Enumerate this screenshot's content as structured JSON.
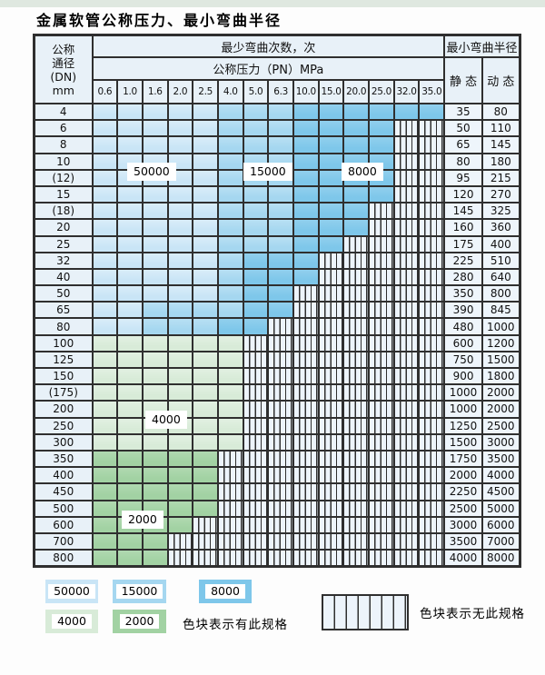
{
  "title": "金属软管公称压力、最小弯曲半径",
  "colors": {
    "b1": "#c9e5f6",
    "b2": "#a5d7f0",
    "b3": "#7ec7ea",
    "g1": "#d8ebd8",
    "g2": "#a2d2a3",
    "hatch_bg": "#edf4fb",
    "header_bg": "#e8f1f8",
    "value_bg": "#eef5fb",
    "border": "#2f2f2f"
  },
  "table": {
    "header": {
      "dn_lines": [
        "公称",
        "通径",
        "(DN)",
        "mm"
      ],
      "min_bend_cycles": "最少弯曲次数，次",
      "nominal_pressure": "公称压力（PN）MPa",
      "pressures": [
        "0.6",
        "1.0",
        "1.6",
        "2.0",
        "2.5",
        "4.0",
        "5.0",
        "6.3",
        "10.0",
        "15.0",
        "20.0",
        "25.0",
        "32.0",
        "35.0"
      ],
      "min_bend_radius": "最小弯曲半径",
      "static": "静 态",
      "dynamic": "动 态"
    },
    "zone_meaning": {
      "b1": "50000",
      "b2": "15000",
      "b3": "8000",
      "g1": "4000",
      "g2": "2000",
      "x": "无此规格"
    },
    "rows": [
      {
        "dn": "4",
        "cells": [
          "b1",
          "b1",
          "b1",
          "b1",
          "b1",
          "b2",
          "b2",
          "b2",
          "b3",
          "b3",
          "b3",
          "b3",
          "b3",
          "b3"
        ],
        "static": "35",
        "dynamic": "80"
      },
      {
        "dn": "6",
        "cells": [
          "b1",
          "b1",
          "b1",
          "b1",
          "b1",
          "b2",
          "b2",
          "b2",
          "b3",
          "b3",
          "b3",
          "b3",
          "x",
          "x"
        ],
        "static": "50",
        "dynamic": "110"
      },
      {
        "dn": "8",
        "cells": [
          "b1",
          "b1",
          "b1",
          "b1",
          "b1",
          "b2",
          "b2",
          "b2",
          "b3",
          "b3",
          "b3",
          "b3",
          "x",
          "x"
        ],
        "static": "65",
        "dynamic": "145"
      },
      {
        "dn": "10",
        "cells": [
          "b1",
          "b1",
          "b1",
          "b1",
          "b1",
          "b2",
          "b2",
          "b2",
          "b3",
          "b3",
          "b3",
          "b3",
          "x",
          "x"
        ],
        "static": "80",
        "dynamic": "180"
      },
      {
        "dn": "(12)",
        "cells": [
          "b1",
          "b1",
          "b1",
          "b1",
          "b1",
          "b2",
          "b2",
          "b2",
          "b3",
          "b3",
          "b3",
          "b3",
          "x",
          "x"
        ],
        "static": "95",
        "dynamic": "215"
      },
      {
        "dn": "15",
        "cells": [
          "b1",
          "b1",
          "b1",
          "b1",
          "b1",
          "b2",
          "b2",
          "b2",
          "b3",
          "b3",
          "b3",
          "b3",
          "x",
          "x"
        ],
        "static": "120",
        "dynamic": "270"
      },
      {
        "dn": "(18)",
        "cells": [
          "b1",
          "b1",
          "b1",
          "b1",
          "b1",
          "b2",
          "b2",
          "b2",
          "b3",
          "b3",
          "b3",
          "x",
          "x",
          "x"
        ],
        "static": "145",
        "dynamic": "325"
      },
      {
        "dn": "20",
        "cells": [
          "b1",
          "b1",
          "b1",
          "b1",
          "b1",
          "b2",
          "b2",
          "b2",
          "b3",
          "b3",
          "b3",
          "x",
          "x",
          "x"
        ],
        "static": "160",
        "dynamic": "360"
      },
      {
        "dn": "25",
        "cells": [
          "b1",
          "b1",
          "b1",
          "b1",
          "b1",
          "b2",
          "b2",
          "b2",
          "b3",
          "b3",
          "x",
          "x",
          "x",
          "x"
        ],
        "static": "175",
        "dynamic": "400"
      },
      {
        "dn": "32",
        "cells": [
          "b1",
          "b1",
          "b1",
          "b1",
          "b1",
          "b2",
          "b3",
          "b3",
          "b3",
          "x",
          "x",
          "x",
          "x",
          "x"
        ],
        "static": "225",
        "dynamic": "510"
      },
      {
        "dn": "40",
        "cells": [
          "b1",
          "b1",
          "b1",
          "b1",
          "b1",
          "b2",
          "b3",
          "b3",
          "b3",
          "x",
          "x",
          "x",
          "x",
          "x"
        ],
        "static": "280",
        "dynamic": "640"
      },
      {
        "dn": "50",
        "cells": [
          "b1",
          "b1",
          "b1",
          "b1",
          "b1",
          "b2",
          "b3",
          "b3",
          "x",
          "x",
          "x",
          "x",
          "x",
          "x"
        ],
        "static": "350",
        "dynamic": "800"
      },
      {
        "dn": "65",
        "cells": [
          "b1",
          "b1",
          "b2",
          "b2",
          "b2",
          "b2",
          "b3",
          "b3",
          "x",
          "x",
          "x",
          "x",
          "x",
          "x"
        ],
        "static": "390",
        "dynamic": "845"
      },
      {
        "dn": "80",
        "cells": [
          "b1",
          "b1",
          "b2",
          "b2",
          "b2",
          "b3",
          "b3",
          "x",
          "x",
          "x",
          "x",
          "x",
          "x",
          "x"
        ],
        "static": "480",
        "dynamic": "1000"
      },
      {
        "dn": "100",
        "cells": [
          "g1",
          "g1",
          "g1",
          "g1",
          "g1",
          "g1",
          "x",
          "x",
          "x",
          "x",
          "x",
          "x",
          "x",
          "x"
        ],
        "static": "600",
        "dynamic": "1200"
      },
      {
        "dn": "125",
        "cells": [
          "g1",
          "g1",
          "g1",
          "g1",
          "g1",
          "g1",
          "x",
          "x",
          "x",
          "x",
          "x",
          "x",
          "x",
          "x"
        ],
        "static": "750",
        "dynamic": "1500"
      },
      {
        "dn": "150",
        "cells": [
          "g1",
          "g1",
          "g1",
          "g1",
          "g1",
          "g1",
          "x",
          "x",
          "x",
          "x",
          "x",
          "x",
          "x",
          "x"
        ],
        "static": "900",
        "dynamic": "1800"
      },
      {
        "dn": "(175)",
        "cells": [
          "g1",
          "g1",
          "g1",
          "g1",
          "g1",
          "g1",
          "x",
          "x",
          "x",
          "x",
          "x",
          "x",
          "x",
          "x"
        ],
        "static": "1000",
        "dynamic": "2000"
      },
      {
        "dn": "200",
        "cells": [
          "g1",
          "g1",
          "g1",
          "g1",
          "g1",
          "g1",
          "x",
          "x",
          "x",
          "x",
          "x",
          "x",
          "x",
          "x"
        ],
        "static": "1000",
        "dynamic": "2000"
      },
      {
        "dn": "250",
        "cells": [
          "g1",
          "g1",
          "g1",
          "g1",
          "g1",
          "g1",
          "x",
          "x",
          "x",
          "x",
          "x",
          "x",
          "x",
          "x"
        ],
        "static": "1250",
        "dynamic": "2500"
      },
      {
        "dn": "300",
        "cells": [
          "g1",
          "g1",
          "g1",
          "g1",
          "g1",
          "g1",
          "x",
          "x",
          "x",
          "x",
          "x",
          "x",
          "x",
          "x"
        ],
        "static": "1500",
        "dynamic": "3000"
      },
      {
        "dn": "350",
        "cells": [
          "g2",
          "g2",
          "g2",
          "g2",
          "g2",
          "x",
          "x",
          "x",
          "x",
          "x",
          "x",
          "x",
          "x",
          "x"
        ],
        "static": "1750",
        "dynamic": "3500"
      },
      {
        "dn": "400",
        "cells": [
          "g2",
          "g2",
          "g2",
          "g2",
          "g2",
          "x",
          "x",
          "x",
          "x",
          "x",
          "x",
          "x",
          "x",
          "x"
        ],
        "static": "2000",
        "dynamic": "4000"
      },
      {
        "dn": "450",
        "cells": [
          "g2",
          "g2",
          "g2",
          "g2",
          "g2",
          "x",
          "x",
          "x",
          "x",
          "x",
          "x",
          "x",
          "x",
          "x"
        ],
        "static": "2250",
        "dynamic": "4500"
      },
      {
        "dn": "500",
        "cells": [
          "g2",
          "g2",
          "g2",
          "g2",
          "g2",
          "x",
          "x",
          "x",
          "x",
          "x",
          "x",
          "x",
          "x",
          "x"
        ],
        "static": "2500",
        "dynamic": "5000"
      },
      {
        "dn": "600",
        "cells": [
          "g2",
          "g2",
          "g2",
          "g2",
          "x",
          "x",
          "x",
          "x",
          "x",
          "x",
          "x",
          "x",
          "x",
          "x"
        ],
        "static": "3000",
        "dynamic": "6000"
      },
      {
        "dn": "700",
        "cells": [
          "g2",
          "g2",
          "g2",
          "x",
          "x",
          "x",
          "x",
          "x",
          "x",
          "x",
          "x",
          "x",
          "x",
          "x"
        ],
        "static": "3500",
        "dynamic": "7000"
      },
      {
        "dn": "800",
        "cells": [
          "g2",
          "g2",
          "g2",
          "x",
          "x",
          "x",
          "x",
          "x",
          "x",
          "x",
          "x",
          "x",
          "x",
          "x"
        ],
        "static": "4000",
        "dynamic": "8000"
      }
    ]
  },
  "overlays": {
    "cycles_50000": "50000",
    "cycles_15000": "15000",
    "cycles_8000": "8000",
    "cycles_4000": "4000",
    "cycles_2000": "2000"
  },
  "legend": {
    "swatches": [
      {
        "label": "50000"
      },
      {
        "label": "15000"
      },
      {
        "label": "8000"
      },
      {
        "label": "4000"
      },
      {
        "label": "2000"
      }
    ],
    "has_spec_text": "色块表示有此规格",
    "no_spec_text": "色块表示无此规格"
  }
}
